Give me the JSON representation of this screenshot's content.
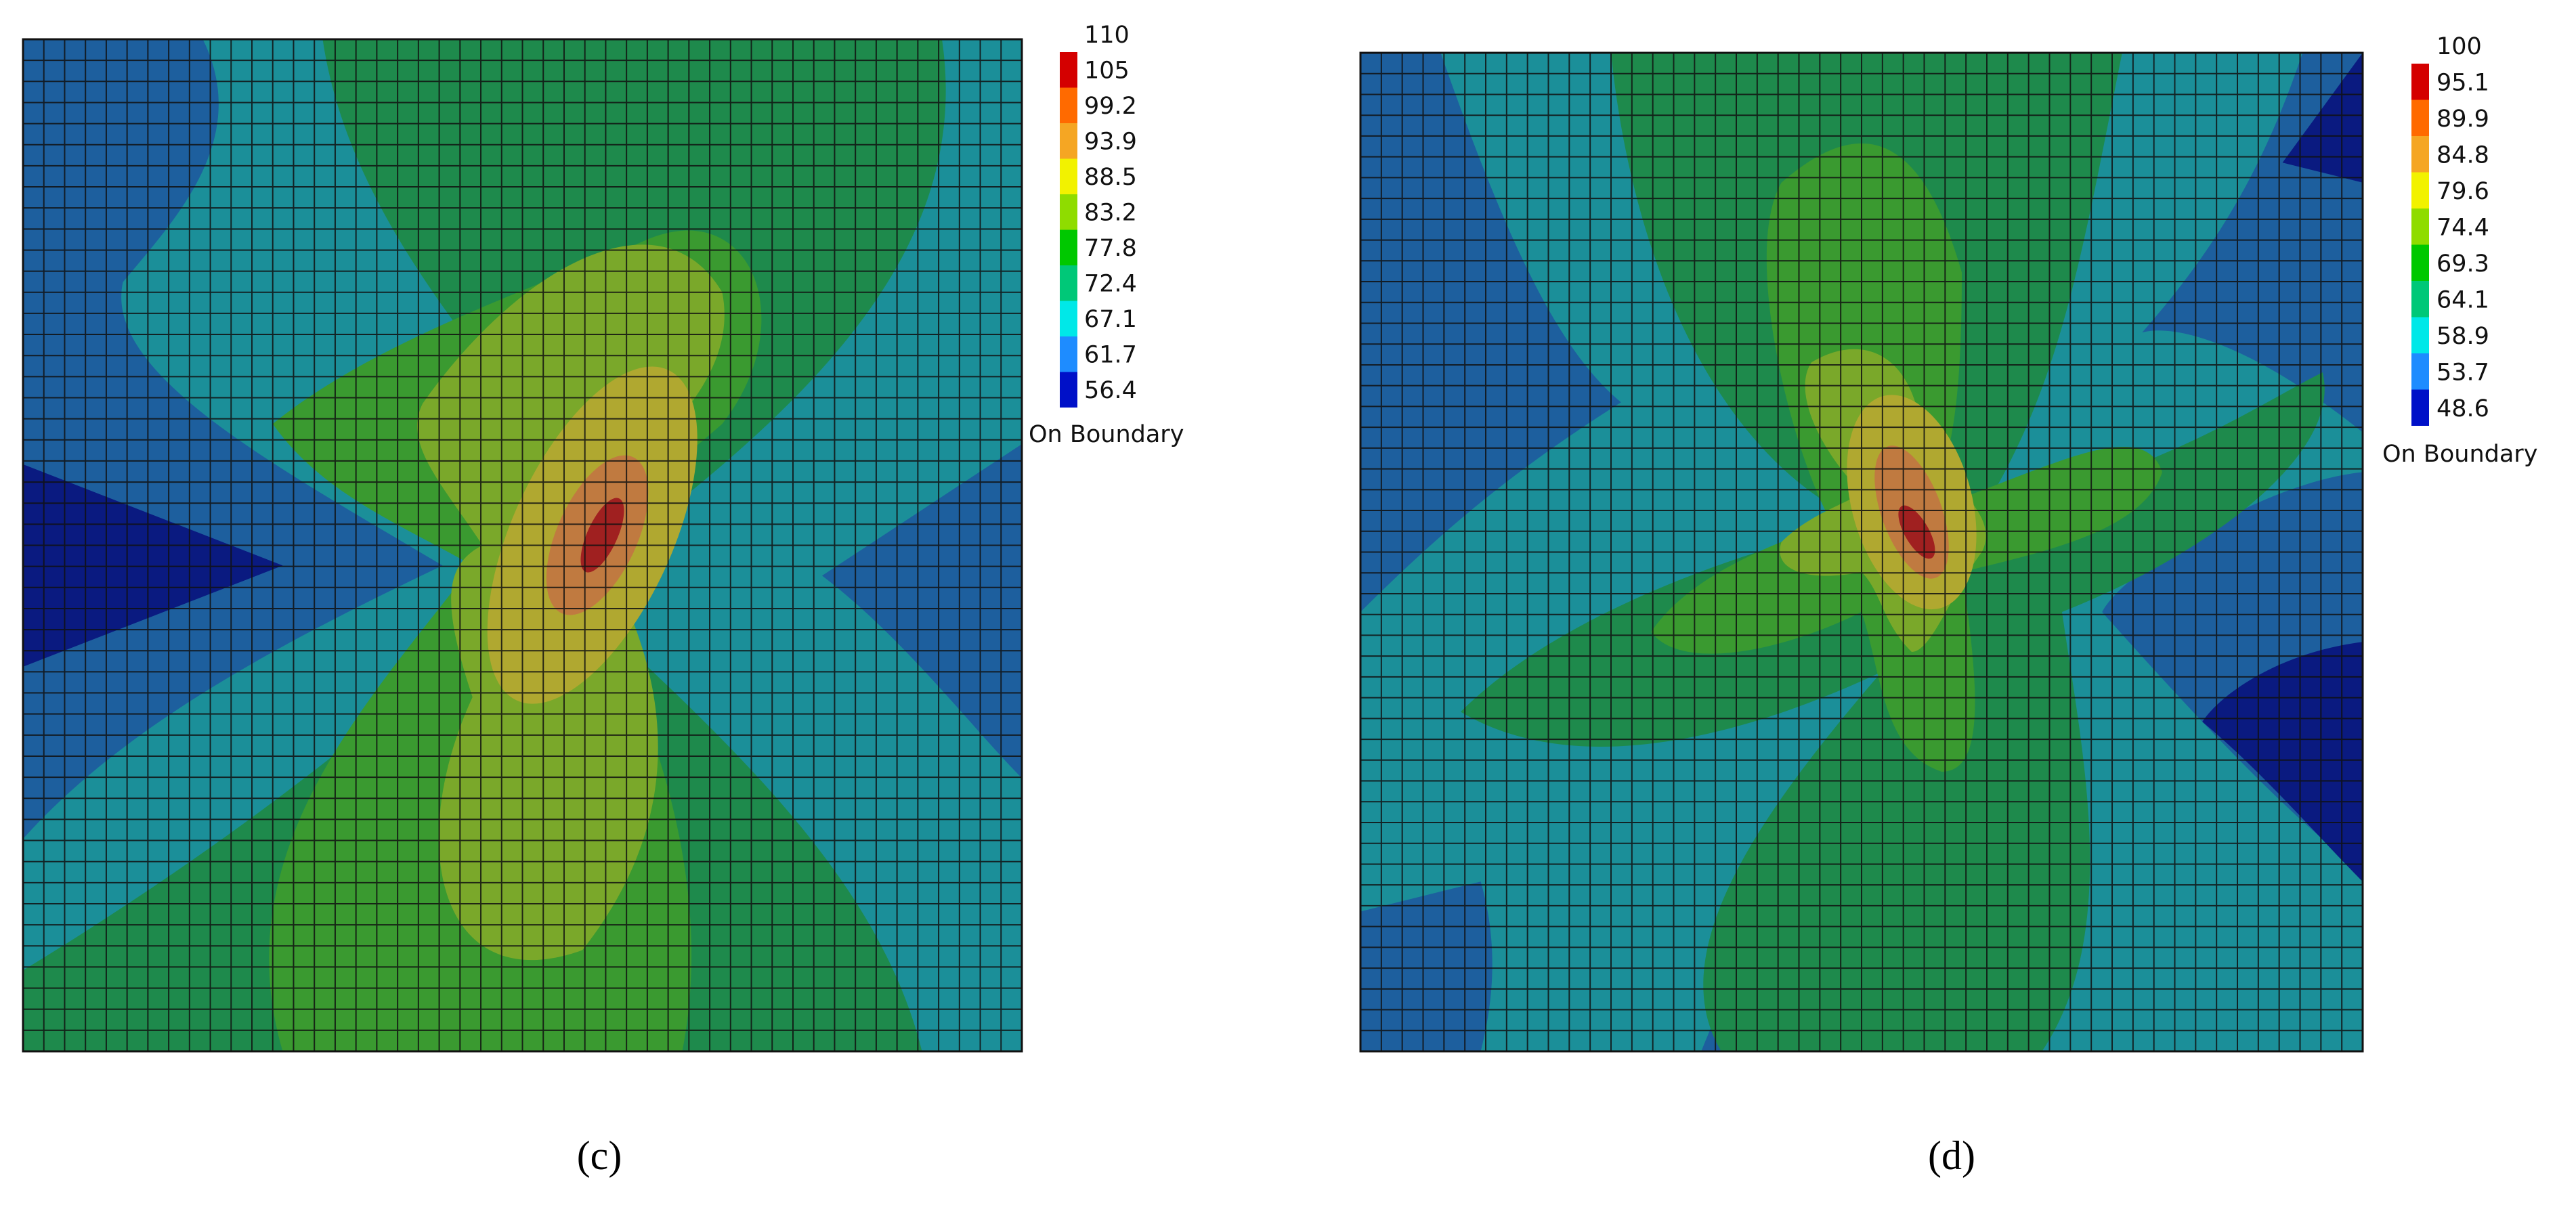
{
  "panels": [
    {
      "caption": "(c)",
      "legend": {
        "levels": [
          110,
          105,
          99.2,
          93.9,
          88.5,
          83.2,
          77.8,
          72.4,
          67.1,
          61.7,
          56.4
        ],
        "colors": [
          "#d40000",
          "#ff6a00",
          "#f5a623",
          "#f2f200",
          "#8fdc00",
          "#00c800",
          "#00c878",
          "#00e8e8",
          "#1e8cff",
          "#0010c8"
        ],
        "note": "On Boundary"
      }
    },
    {
      "caption": "(d)",
      "legend": {
        "levels": [
          100,
          95.1,
          89.9,
          84.8,
          79.6,
          74.4,
          69.3,
          64.1,
          58.9,
          53.7,
          48.6
        ],
        "colors": [
          "#d40000",
          "#ff6a00",
          "#f5a623",
          "#f2f200",
          "#8fdc00",
          "#00c800",
          "#00c878",
          "#00e8e8",
          "#1e8cff",
          "#0010c8"
        ],
        "note": "On Boundary"
      }
    }
  ]
}
